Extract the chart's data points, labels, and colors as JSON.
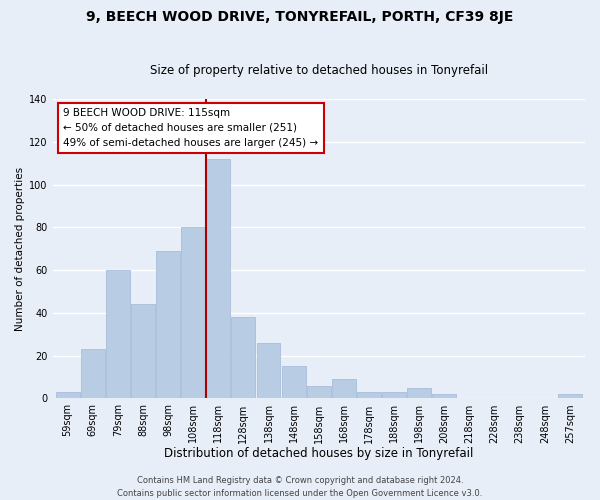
{
  "title": "9, BEECH WOOD DRIVE, TONYREFAIL, PORTH, CF39 8JE",
  "subtitle": "Size of property relative to detached houses in Tonyrefail",
  "xlabel": "Distribution of detached houses by size in Tonyrefail",
  "ylabel": "Number of detached properties",
  "bar_labels": [
    "59sqm",
    "69sqm",
    "79sqm",
    "88sqm",
    "98sqm",
    "108sqm",
    "118sqm",
    "128sqm",
    "138sqm",
    "148sqm",
    "158sqm",
    "168sqm",
    "178sqm",
    "188sqm",
    "198sqm",
    "208sqm",
    "218sqm",
    "228sqm",
    "238sqm",
    "248sqm",
    "257sqm"
  ],
  "bar_heights": [
    3,
    23,
    60,
    44,
    69,
    80,
    112,
    38,
    26,
    15,
    6,
    9,
    3,
    3,
    5,
    2,
    0,
    0,
    0,
    0,
    2
  ],
  "bar_color": "#b8cce4",
  "bar_edge_color": "#a0b8d8",
  "highlight_bar_index": 6,
  "highlight_line_color": "#aa0000",
  "ylim": [
    0,
    140
  ],
  "yticks": [
    0,
    20,
    40,
    60,
    80,
    100,
    120,
    140
  ],
  "annotation_title": "9 BEECH WOOD DRIVE: 115sqm",
  "annotation_line1": "← 50% of detached houses are smaller (251)",
  "annotation_line2": "49% of semi-detached houses are larger (245) →",
  "annotation_box_facecolor": "#ffffff",
  "annotation_box_edgecolor": "#cc0000",
  "footer_line1": "Contains HM Land Registry data © Crown copyright and database right 2024.",
  "footer_line2": "Contains public sector information licensed under the Open Government Licence v3.0.",
  "background_color": "#e8eef8",
  "grid_color": "#ffffff",
  "title_fontsize": 10,
  "subtitle_fontsize": 8.5,
  "xlabel_fontsize": 8.5,
  "ylabel_fontsize": 7.5,
  "tick_fontsize": 7,
  "annotation_fontsize": 7.5,
  "footer_fontsize": 6
}
